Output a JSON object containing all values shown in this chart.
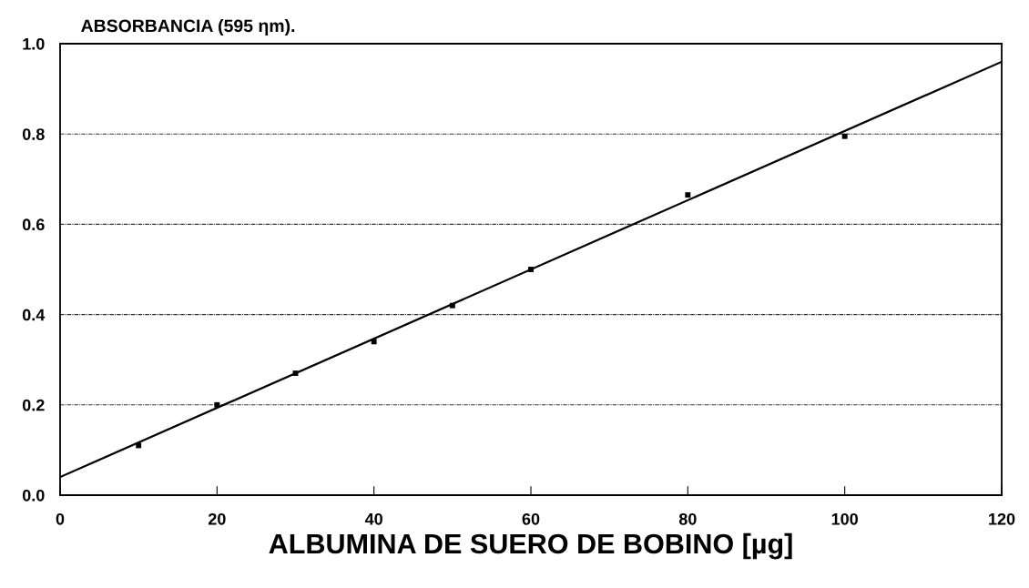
{
  "chart_data": {
    "type": "scatter",
    "ylabel": "ABSORBANCIA (595 ηm).",
    "xlabel": "ALBUMINA DE SUERO DE BOBINO [µg]",
    "x": [
      10,
      20,
      30,
      40,
      50,
      60,
      80,
      100
    ],
    "series": [
      {
        "color": "#000000",
        "marker": "square",
        "values": [
          0.11,
          0.2,
          0.27,
          0.34,
          0.42,
          0.5,
          0.665,
          0.795
        ]
      },
      {
        "type": "line",
        "color": "#000000",
        "x": [
          0,
          120
        ],
        "values": [
          0.04,
          0.96
        ],
        "marker": "none",
        "line_style": "solid"
      }
    ],
    "xlim": [
      0,
      120
    ],
    "xticks": [
      0,
      20,
      40,
      60,
      80,
      100,
      120
    ],
    "ylim": [
      0,
      1.0
    ],
    "yticks": [
      {
        "value": 0,
        "label": "0.0"
      },
      0.2,
      0.4,
      0.6,
      0.8,
      {
        "value": 1.0,
        "label": "1.0"
      }
    ],
    "grid": "y",
    "legend": false
  }
}
